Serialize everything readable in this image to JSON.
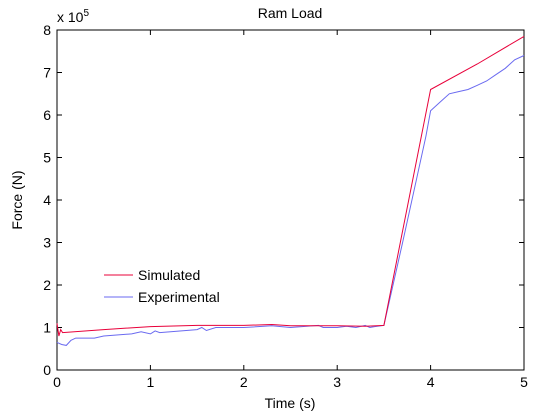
{
  "chart_data": {
    "type": "line",
    "title": "Ram Load",
    "xlabel": "Time (s)",
    "ylabel": "Force (N)",
    "xlim": [
      0,
      5
    ],
    "ylim": [
      0,
      8
    ],
    "scale_label": "x 10",
    "scale_exponent": "5",
    "x_ticks": [
      "0",
      "1",
      "2",
      "3",
      "4",
      "5"
    ],
    "y_ticks": [
      "0",
      "1",
      "2",
      "3",
      "4",
      "5",
      "6",
      "7",
      "8"
    ],
    "grid": false,
    "legend_position": "lower-left",
    "series": [
      {
        "name": "Simulated",
        "color": "#e8003a",
        "points": [
          [
            0,
            1.1
          ],
          [
            0.02,
            0.8
          ],
          [
            0.04,
            0.95
          ],
          [
            0.06,
            0.88
          ],
          [
            0.5,
            0.95
          ],
          [
            1.0,
            1.02
          ],
          [
            1.5,
            1.05
          ],
          [
            2.0,
            1.05
          ],
          [
            2.3,
            1.07
          ],
          [
            2.5,
            1.04
          ],
          [
            3.0,
            1.04
          ],
          [
            3.3,
            1.03
          ],
          [
            3.5,
            1.05
          ],
          [
            4.0,
            6.6
          ],
          [
            4.5,
            7.2
          ],
          [
            5.0,
            7.85
          ]
        ]
      },
      {
        "name": "Experimental",
        "color": "#6a6af0",
        "points": [
          [
            0,
            0.65
          ],
          [
            0.05,
            0.6
          ],
          [
            0.1,
            0.58
          ],
          [
            0.15,
            0.7
          ],
          [
            0.2,
            0.75
          ],
          [
            0.4,
            0.75
          ],
          [
            0.5,
            0.8
          ],
          [
            0.8,
            0.85
          ],
          [
            0.9,
            0.9
          ],
          [
            1.0,
            0.85
          ],
          [
            1.05,
            0.92
          ],
          [
            1.1,
            0.88
          ],
          [
            1.5,
            0.95
          ],
          [
            1.55,
            1.0
          ],
          [
            1.6,
            0.93
          ],
          [
            1.7,
            1.0
          ],
          [
            2.0,
            1.0
          ],
          [
            2.3,
            1.04
          ],
          [
            2.5,
            1.0
          ],
          [
            2.8,
            1.05
          ],
          [
            2.85,
            1.0
          ],
          [
            3.0,
            1.0
          ],
          [
            3.1,
            1.03
          ],
          [
            3.2,
            1.0
          ],
          [
            3.3,
            1.05
          ],
          [
            3.35,
            1.0
          ],
          [
            3.4,
            1.02
          ],
          [
            3.5,
            1.05
          ],
          [
            3.7,
            3.0
          ],
          [
            3.85,
            4.5
          ],
          [
            3.95,
            5.5
          ],
          [
            4.0,
            6.1
          ],
          [
            4.1,
            6.3
          ],
          [
            4.2,
            6.5
          ],
          [
            4.3,
            6.55
          ],
          [
            4.4,
            6.6
          ],
          [
            4.5,
            6.7
          ],
          [
            4.6,
            6.8
          ],
          [
            4.7,
            6.95
          ],
          [
            4.8,
            7.1
          ],
          [
            4.9,
            7.3
          ],
          [
            5.0,
            7.4
          ]
        ]
      }
    ]
  }
}
